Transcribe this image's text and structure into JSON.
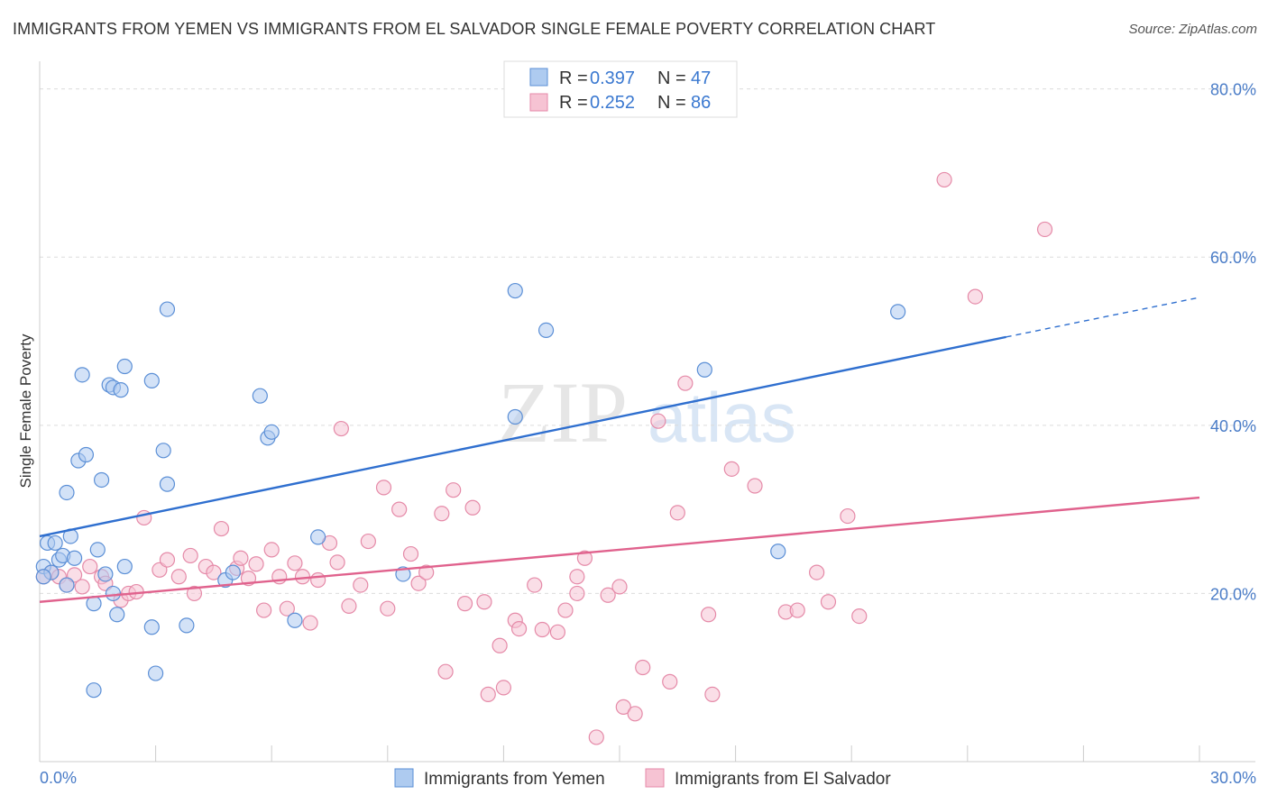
{
  "title": "IMMIGRANTS FROM YEMEN VS IMMIGRANTS FROM EL SALVADOR SINGLE FEMALE POVERTY CORRELATION CHART",
  "source": "Source: ZipAtlas.com",
  "watermark": {
    "zip": "ZIP",
    "atlas": "atlas"
  },
  "colors": {
    "yemen_fill": "#aecbf0",
    "yemen_stroke": "#5b8fd6",
    "yemen_line": "#2f6fcf",
    "salvador_fill": "#f6c3d3",
    "salvador_stroke": "#e58aa8",
    "salvador_line": "#e0628d",
    "grid": "#dcdcdc",
    "axis_label": "#4a7cc7"
  },
  "legend_top": {
    "yemen": {
      "r_label": "R = ",
      "r_value": "0.397",
      "n_label": "N = ",
      "n_value": "47"
    },
    "salvador": {
      "r_label": "R = ",
      "r_value": "0.252",
      "n_label": "N = ",
      "n_value": "86"
    }
  },
  "chart_data": {
    "type": "scatter",
    "ylabel": "Single Female Poverty",
    "xlabel": "",
    "xlim": [
      0,
      30
    ],
    "ylim": [
      0,
      82
    ],
    "x_tick_labels": [
      "0.0%",
      "30.0%"
    ],
    "y_tick_labels": [
      "20.0%",
      "40.0%",
      "60.0%",
      "80.0%"
    ],
    "y_tick_values": [
      20,
      40,
      60,
      80
    ],
    "series": [
      {
        "name": "Immigrants from Yemen",
        "trend": {
          "x0": 0,
          "y0": 26.8,
          "x1": 25.0,
          "y1": 50.5,
          "dash_to_x": 30,
          "dash_to_y": 55.2
        },
        "points": [
          {
            "x": 0.1,
            "y": 23.2
          },
          {
            "x": 0.2,
            "y": 26.0
          },
          {
            "x": 0.3,
            "y": 22.5
          },
          {
            "x": 0.4,
            "y": 26.0
          },
          {
            "x": 0.5,
            "y": 24.0
          },
          {
            "x": 0.6,
            "y": 24.5
          },
          {
            "x": 0.7,
            "y": 21.0
          },
          {
            "x": 0.7,
            "y": 32.0
          },
          {
            "x": 0.8,
            "y": 26.8
          },
          {
            "x": 0.9,
            "y": 24.2
          },
          {
            "x": 1.0,
            "y": 35.8
          },
          {
            "x": 1.1,
            "y": 46.0
          },
          {
            "x": 1.2,
            "y": 36.5
          },
          {
            "x": 1.4,
            "y": 18.8
          },
          {
            "x": 1.4,
            "y": 8.5
          },
          {
            "x": 1.5,
            "y": 25.2
          },
          {
            "x": 1.6,
            "y": 33.5
          },
          {
            "x": 1.7,
            "y": 22.3
          },
          {
            "x": 1.8,
            "y": 44.8
          },
          {
            "x": 1.9,
            "y": 44.5
          },
          {
            "x": 1.9,
            "y": 20.0
          },
          {
            "x": 2.1,
            "y": 44.2
          },
          {
            "x": 2.2,
            "y": 47.0
          },
          {
            "x": 2.2,
            "y": 23.2
          },
          {
            "x": 2.0,
            "y": 17.5
          },
          {
            "x": 2.9,
            "y": 45.3
          },
          {
            "x": 2.9,
            "y": 16.0
          },
          {
            "x": 3.0,
            "y": 10.5
          },
          {
            "x": 3.2,
            "y": 37.0
          },
          {
            "x": 3.3,
            "y": 33.0
          },
          {
            "x": 3.3,
            "y": 53.8
          },
          {
            "x": 3.8,
            "y": 16.2
          },
          {
            "x": 4.8,
            "y": 21.6
          },
          {
            "x": 5.0,
            "y": 22.5
          },
          {
            "x": 5.7,
            "y": 43.5
          },
          {
            "x": 5.9,
            "y": 38.5
          },
          {
            "x": 6.0,
            "y": 39.2
          },
          {
            "x": 6.6,
            "y": 16.8
          },
          {
            "x": 7.2,
            "y": 26.7
          },
          {
            "x": 9.4,
            "y": 22.3
          },
          {
            "x": 12.3,
            "y": 56.0
          },
          {
            "x": 12.3,
            "y": 41.0
          },
          {
            "x": 13.1,
            "y": 51.3
          },
          {
            "x": 17.2,
            "y": 46.6
          },
          {
            "x": 19.1,
            "y": 25.0
          },
          {
            "x": 22.2,
            "y": 53.5
          },
          {
            "x": 0.1,
            "y": 22.0
          }
        ]
      },
      {
        "name": "Immigrants from El Salvador",
        "trend": {
          "x0": 0,
          "y0": 19.0,
          "x1": 30,
          "y1": 31.4
        },
        "points": [
          {
            "x": 0.1,
            "y": 22.0
          },
          {
            "x": 0.3,
            "y": 22.5
          },
          {
            "x": 0.5,
            "y": 22.0
          },
          {
            "x": 0.7,
            "y": 21.0
          },
          {
            "x": 0.9,
            "y": 22.2
          },
          {
            "x": 1.1,
            "y": 20.8
          },
          {
            "x": 1.3,
            "y": 23.2
          },
          {
            "x": 1.6,
            "y": 22.0
          },
          {
            "x": 1.7,
            "y": 21.2
          },
          {
            "x": 2.1,
            "y": 19.2
          },
          {
            "x": 2.3,
            "y": 20.0
          },
          {
            "x": 2.5,
            "y": 20.2
          },
          {
            "x": 2.7,
            "y": 29.0
          },
          {
            "x": 3.1,
            "y": 22.8
          },
          {
            "x": 3.3,
            "y": 24.0
          },
          {
            "x": 3.6,
            "y": 22.0
          },
          {
            "x": 3.9,
            "y": 24.5
          },
          {
            "x": 4.0,
            "y": 20.0
          },
          {
            "x": 4.3,
            "y": 23.2
          },
          {
            "x": 4.5,
            "y": 22.5
          },
          {
            "x": 4.7,
            "y": 27.7
          },
          {
            "x": 5.1,
            "y": 23.0
          },
          {
            "x": 5.2,
            "y": 24.2
          },
          {
            "x": 5.4,
            "y": 21.8
          },
          {
            "x": 5.6,
            "y": 23.5
          },
          {
            "x": 5.8,
            "y": 18.0
          },
          {
            "x": 6.0,
            "y": 25.2
          },
          {
            "x": 6.2,
            "y": 22.0
          },
          {
            "x": 6.4,
            "y": 18.2
          },
          {
            "x": 6.6,
            "y": 23.6
          },
          {
            "x": 6.8,
            "y": 22.0
          },
          {
            "x": 7.0,
            "y": 16.5
          },
          {
            "x": 7.2,
            "y": 21.6
          },
          {
            "x": 7.5,
            "y": 26.0
          },
          {
            "x": 7.7,
            "y": 23.7
          },
          {
            "x": 7.8,
            "y": 39.6
          },
          {
            "x": 8.0,
            "y": 18.5
          },
          {
            "x": 8.3,
            "y": 21.0
          },
          {
            "x": 8.5,
            "y": 26.2
          },
          {
            "x": 8.9,
            "y": 32.6
          },
          {
            "x": 9.0,
            "y": 18.2
          },
          {
            "x": 9.3,
            "y": 30.0
          },
          {
            "x": 9.6,
            "y": 24.7
          },
          {
            "x": 9.8,
            "y": 21.2
          },
          {
            "x": 10.0,
            "y": 22.5
          },
          {
            "x": 10.4,
            "y": 29.5
          },
          {
            "x": 10.5,
            "y": 10.7
          },
          {
            "x": 10.7,
            "y": 32.3
          },
          {
            "x": 11.0,
            "y": 18.8
          },
          {
            "x": 11.2,
            "y": 30.2
          },
          {
            "x": 11.5,
            "y": 19.0
          },
          {
            "x": 11.6,
            "y": 8.0
          },
          {
            "x": 11.9,
            "y": 13.8
          },
          {
            "x": 12.0,
            "y": 8.8
          },
          {
            "x": 12.3,
            "y": 16.8
          },
          {
            "x": 12.4,
            "y": 15.8
          },
          {
            "x": 12.8,
            "y": 21.0
          },
          {
            "x": 13.0,
            "y": 15.7
          },
          {
            "x": 13.4,
            "y": 15.4
          },
          {
            "x": 13.6,
            "y": 18.0
          },
          {
            "x": 13.9,
            "y": 20.0
          },
          {
            "x": 13.9,
            "y": 22.0
          },
          {
            "x": 14.1,
            "y": 24.2
          },
          {
            "x": 14.4,
            "y": 2.9
          },
          {
            "x": 14.7,
            "y": 19.8
          },
          {
            "x": 15.0,
            "y": 20.8
          },
          {
            "x": 15.1,
            "y": 6.5
          },
          {
            "x": 15.4,
            "y": 5.7
          },
          {
            "x": 15.6,
            "y": 11.2
          },
          {
            "x": 16.0,
            "y": 40.5
          },
          {
            "x": 16.3,
            "y": 9.5
          },
          {
            "x": 16.5,
            "y": 29.6
          },
          {
            "x": 16.7,
            "y": 45.0
          },
          {
            "x": 17.3,
            "y": 17.5
          },
          {
            "x": 17.4,
            "y": 8.0
          },
          {
            "x": 17.9,
            "y": 34.8
          },
          {
            "x": 18.5,
            "y": 32.8
          },
          {
            "x": 19.3,
            "y": 17.8
          },
          {
            "x": 19.6,
            "y": 18.0
          },
          {
            "x": 20.1,
            "y": 22.5
          },
          {
            "x": 20.4,
            "y": 19.0
          },
          {
            "x": 20.9,
            "y": 29.2
          },
          {
            "x": 21.2,
            "y": 17.3
          },
          {
            "x": 23.4,
            "y": 69.2
          },
          {
            "x": 24.2,
            "y": 55.3
          },
          {
            "x": 26.0,
            "y": 63.3
          }
        ]
      }
    ]
  },
  "legend_bottom": {
    "yemen": "Immigrants from Yemen",
    "salvador": "Immigrants from El Salvador"
  }
}
